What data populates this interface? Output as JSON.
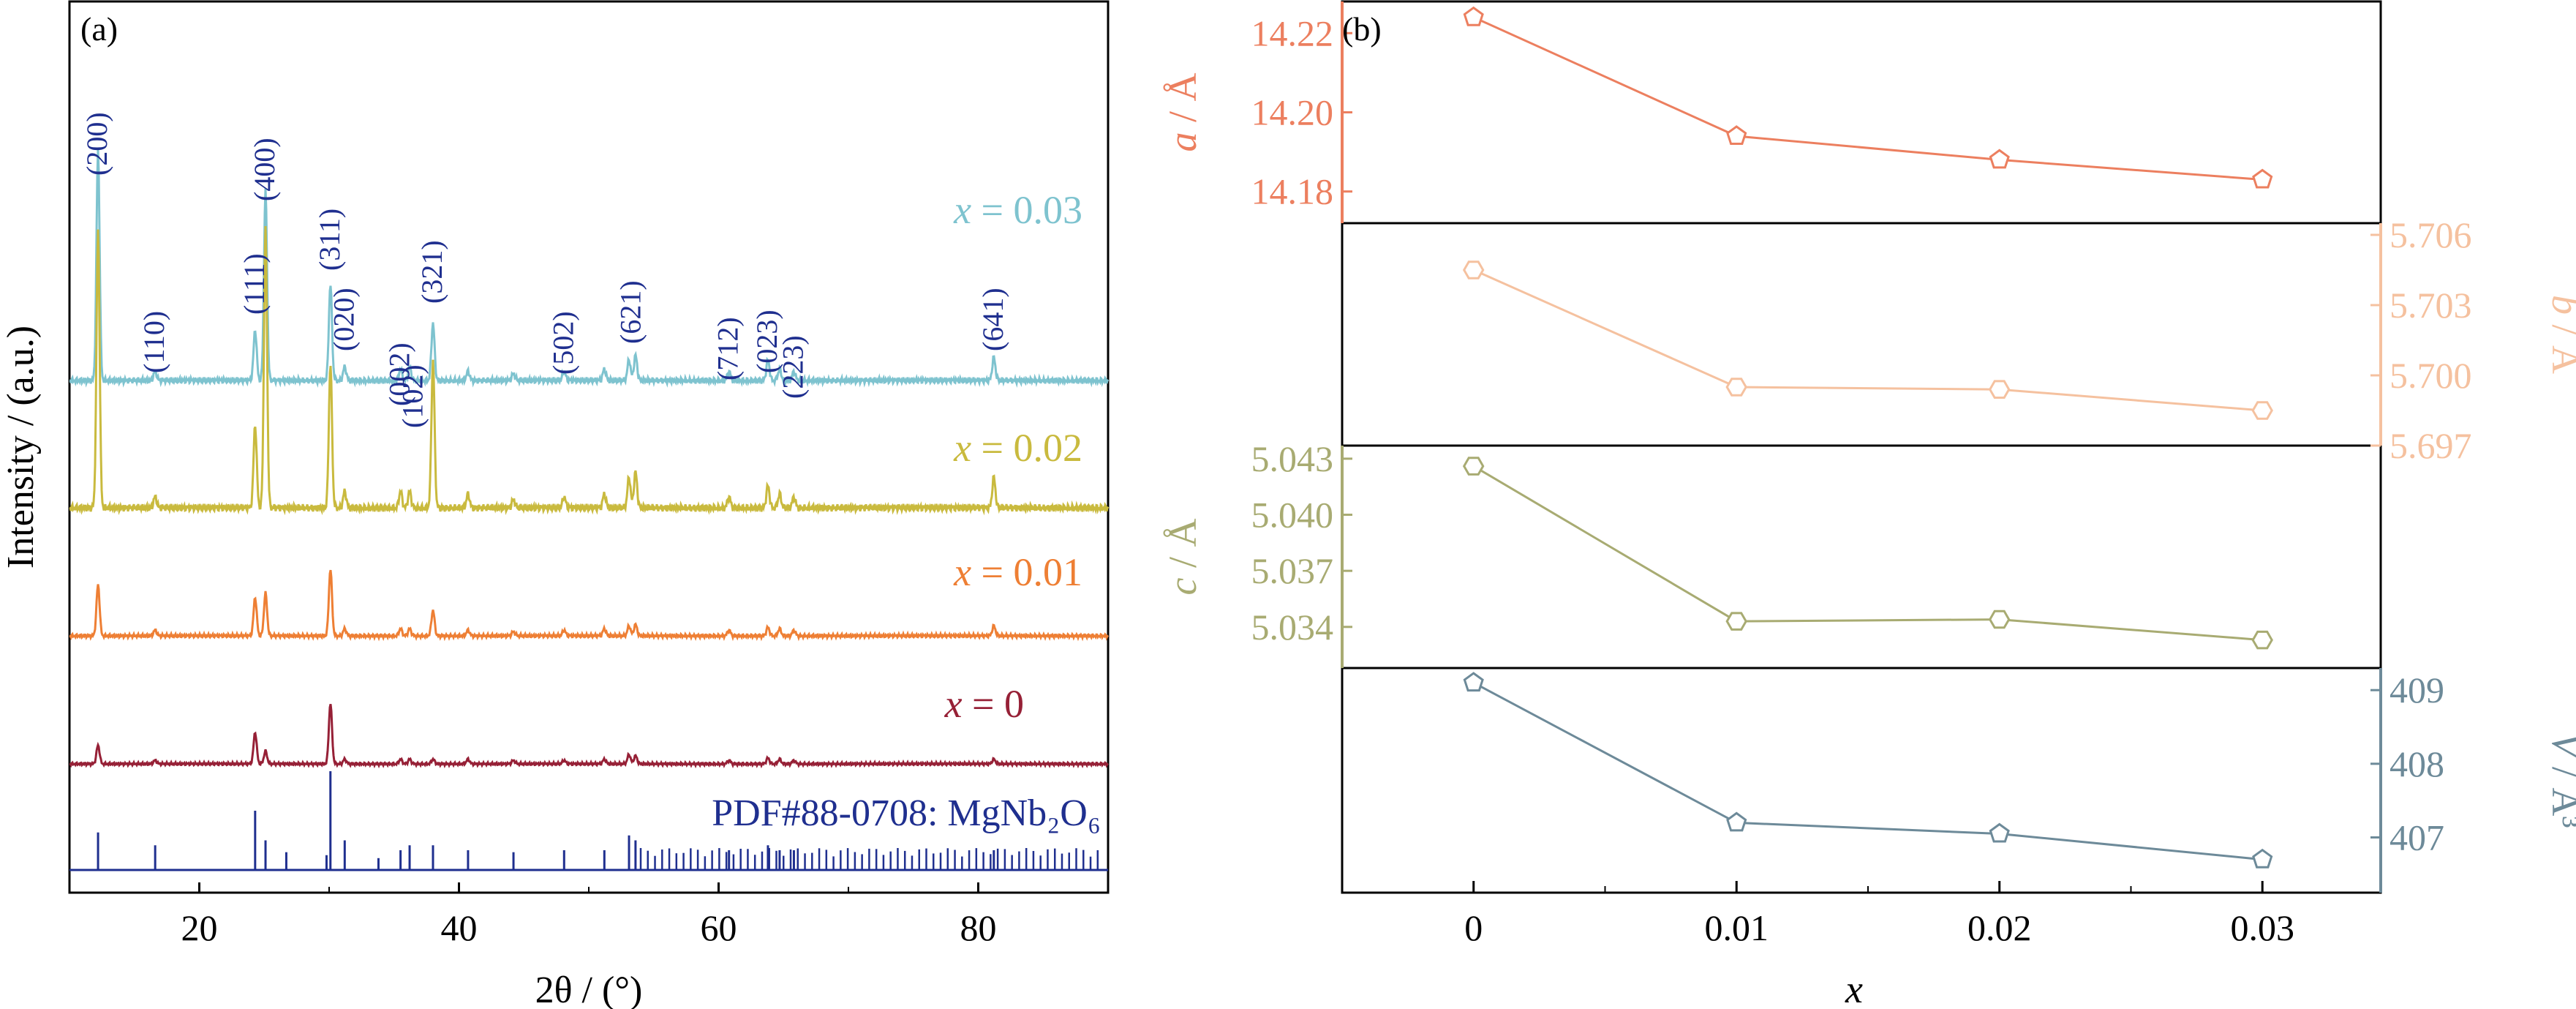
{
  "panels": {
    "a_label": "(a)",
    "b_label": "(b)"
  },
  "chart_data": [
    {
      "type": "line",
      "panel": "(a)",
      "xlabel": "2θ / (°)",
      "ylabel": "Intensity / (a.u.)",
      "xlim": [
        10,
        90
      ],
      "x_ticks": [
        20,
        40,
        60,
        80
      ],
      "series": [
        {
          "name": "x = 0.03",
          "color": "#7ec3cf",
          "peaks": [
            {
              "x": 12.2,
              "h": 1.0
            },
            {
              "x": 16.6,
              "h": 0.04
            },
            {
              "x": 24.3,
              "h": 0.22
            },
            {
              "x": 25.1,
              "h": 0.82
            },
            {
              "x": 30.1,
              "h": 0.42
            },
            {
              "x": 31.2,
              "h": 0.06
            },
            {
              "x": 35.5,
              "h": 0.05
            },
            {
              "x": 36.2,
              "h": 0.06
            },
            {
              "x": 38.0,
              "h": 0.25
            },
            {
              "x": 40.7,
              "h": 0.04
            },
            {
              "x": 44.2,
              "h": 0.03
            },
            {
              "x": 48.1,
              "h": 0.04
            },
            {
              "x": 51.2,
              "h": 0.05
            },
            {
              "x": 53.1,
              "h": 0.09
            },
            {
              "x": 53.6,
              "h": 0.11
            },
            {
              "x": 60.8,
              "h": 0.04
            },
            {
              "x": 63.8,
              "h": 0.09
            },
            {
              "x": 64.7,
              "h": 0.05
            },
            {
              "x": 65.8,
              "h": 0.04
            },
            {
              "x": 81.2,
              "h": 0.1
            }
          ]
        },
        {
          "name": "x = 0.02",
          "color": "#c9ba3e",
          "peaks": [
            {
              "x": 12.2,
              "h": 1.0
            },
            {
              "x": 16.6,
              "h": 0.04
            },
            {
              "x": 24.3,
              "h": 0.3
            },
            {
              "x": 25.1,
              "h": 1.0
            },
            {
              "x": 30.1,
              "h": 0.52
            },
            {
              "x": 31.2,
              "h": 0.06
            },
            {
              "x": 35.5,
              "h": 0.06
            },
            {
              "x": 36.2,
              "h": 0.06
            },
            {
              "x": 38.0,
              "h": 0.53
            },
            {
              "x": 40.7,
              "h": 0.05
            },
            {
              "x": 44.2,
              "h": 0.03
            },
            {
              "x": 48.1,
              "h": 0.04
            },
            {
              "x": 51.2,
              "h": 0.05
            },
            {
              "x": 53.1,
              "h": 0.11
            },
            {
              "x": 53.6,
              "h": 0.13
            },
            {
              "x": 60.8,
              "h": 0.04
            },
            {
              "x": 63.8,
              "h": 0.08
            },
            {
              "x": 64.7,
              "h": 0.05
            },
            {
              "x": 65.8,
              "h": 0.04
            },
            {
              "x": 81.2,
              "h": 0.11
            }
          ]
        },
        {
          "name": "x = 0.01",
          "color": "#ee7f34",
          "peaks": [
            {
              "x": 12.2,
              "h": 0.36
            },
            {
              "x": 16.6,
              "h": 0.04
            },
            {
              "x": 24.3,
              "h": 0.27
            },
            {
              "x": 25.1,
              "h": 0.3
            },
            {
              "x": 30.1,
              "h": 0.47
            },
            {
              "x": 31.2,
              "h": 0.05
            },
            {
              "x": 35.5,
              "h": 0.05
            },
            {
              "x": 36.2,
              "h": 0.05
            },
            {
              "x": 38.0,
              "h": 0.18
            },
            {
              "x": 40.7,
              "h": 0.04
            },
            {
              "x": 44.2,
              "h": 0.03
            },
            {
              "x": 48.1,
              "h": 0.04
            },
            {
              "x": 51.2,
              "h": 0.05
            },
            {
              "x": 53.1,
              "h": 0.07
            },
            {
              "x": 53.6,
              "h": 0.08
            },
            {
              "x": 60.8,
              "h": 0.04
            },
            {
              "x": 63.8,
              "h": 0.06
            },
            {
              "x": 64.7,
              "h": 0.05
            },
            {
              "x": 65.8,
              "h": 0.04
            },
            {
              "x": 81.2,
              "h": 0.07
            }
          ]
        },
        {
          "name": "x = 0",
          "color": "#962036",
          "peaks": [
            {
              "x": 12.2,
              "h": 0.16
            },
            {
              "x": 16.6,
              "h": 0.03
            },
            {
              "x": 24.3,
              "h": 0.27
            },
            {
              "x": 25.1,
              "h": 0.11
            },
            {
              "x": 30.1,
              "h": 0.52
            },
            {
              "x": 31.2,
              "h": 0.04
            },
            {
              "x": 35.5,
              "h": 0.04
            },
            {
              "x": 36.2,
              "h": 0.04
            },
            {
              "x": 38.0,
              "h": 0.04
            },
            {
              "x": 40.7,
              "h": 0.04
            },
            {
              "x": 44.2,
              "h": 0.03
            },
            {
              "x": 48.1,
              "h": 0.03
            },
            {
              "x": 51.2,
              "h": 0.04
            },
            {
              "x": 53.1,
              "h": 0.08
            },
            {
              "x": 53.6,
              "h": 0.07
            },
            {
              "x": 60.8,
              "h": 0.03
            },
            {
              "x": 63.8,
              "h": 0.05
            },
            {
              "x": 64.7,
              "h": 0.04
            },
            {
              "x": 65.8,
              "h": 0.03
            },
            {
              "x": 81.2,
              "h": 0.04
            }
          ]
        }
      ],
      "reference": {
        "label": "PDF#88-0708: MgNb₂O₆",
        "color": "#1f2f8f",
        "sticks": [
          {
            "x": 12.2,
            "h": 0.38
          },
          {
            "x": 16.6,
            "h": 0.25
          },
          {
            "x": 24.3,
            "h": 0.6
          },
          {
            "x": 25.1,
            "h": 0.3
          },
          {
            "x": 26.7,
            "h": 0.18
          },
          {
            "x": 29.8,
            "h": 0.15
          },
          {
            "x": 30.1,
            "h": 1.0
          },
          {
            "x": 31.2,
            "h": 0.3
          },
          {
            "x": 33.8,
            "h": 0.12
          },
          {
            "x": 35.5,
            "h": 0.2
          },
          {
            "x": 36.2,
            "h": 0.25
          },
          {
            "x": 38.0,
            "h": 0.25
          },
          {
            "x": 40.7,
            "h": 0.2
          },
          {
            "x": 44.2,
            "h": 0.18
          },
          {
            "x": 48.1,
            "h": 0.2
          },
          {
            "x": 51.2,
            "h": 0.2
          },
          {
            "x": 53.1,
            "h": 0.35
          },
          {
            "x": 53.6,
            "h": 0.3
          },
          {
            "x": 60.8,
            "h": 0.2
          },
          {
            "x": 63.8,
            "h": 0.25
          },
          {
            "x": 64.7,
            "h": 0.2
          },
          {
            "x": 65.8,
            "h": 0.2
          },
          {
            "x": 81.2,
            "h": 0.2
          }
        ]
      },
      "annotations": [
        {
          "text": "(200)",
          "x": 12.2
        },
        {
          "text": "(110)",
          "x": 16.6
        },
        {
          "text": "(111)",
          "x": 24.3
        },
        {
          "text": "(400)",
          "x": 25.1
        },
        {
          "text": "(311)",
          "x": 30.1
        },
        {
          "text": "(020)",
          "x": 31.2
        },
        {
          "text": "(002)",
          "x": 35.5
        },
        {
          "text": "(102)",
          "x": 36.5
        },
        {
          "text": "(321)",
          "x": 38.0
        },
        {
          "text": "(502)",
          "x": 48.1
        },
        {
          "text": "(621)",
          "x": 53.3
        },
        {
          "text": "(712)",
          "x": 60.8
        },
        {
          "text": "(023)",
          "x": 63.8
        },
        {
          "text": "(223)",
          "x": 65.8
        },
        {
          "text": "(641)",
          "x": 81.2
        }
      ]
    },
    {
      "type": "line",
      "panel": "(b)",
      "xlabel": "x",
      "x": [
        0,
        0.01,
        0.02,
        0.03
      ],
      "x_tick_labels": [
        "0",
        "0.01",
        "0.02",
        "0.03"
      ],
      "xlim": [
        -0.005,
        0.0345
      ],
      "series": [
        {
          "name": "a / Å",
          "color": "#ec7f5f",
          "marker": "pentagon",
          "values": [
            14.224,
            14.194,
            14.188,
            14.183
          ],
          "ylim": [
            14.172,
            14.228
          ],
          "ticks": [
            "14.18",
            "14.20",
            "14.22"
          ],
          "tick_values": [
            14.18,
            14.2,
            14.22
          ],
          "axis_side": "left"
        },
        {
          "name": "b / Å",
          "color": "#f5c19f",
          "marker": "hexagon",
          "values": [
            5.7045,
            5.6995,
            5.6994,
            5.6985
          ],
          "ylim": [
            5.697,
            5.7065
          ],
          "ticks": [
            "5.697",
            "5.700",
            "5.703",
            "5.706"
          ],
          "tick_values": [
            5.697,
            5.7,
            5.703,
            5.706
          ],
          "axis_side": "right"
        },
        {
          "name": "c / Å",
          "color": "#a8ab72",
          "marker": "hexagon",
          "values": [
            5.0426,
            5.0343,
            5.0344,
            5.0333
          ],
          "ylim": [
            5.0318,
            5.0437
          ],
          "ticks": [
            "5.034",
            "5.037",
            "5.040",
            "5.043"
          ],
          "tick_values": [
            5.034,
            5.037,
            5.04,
            5.043
          ],
          "axis_side": "left"
        },
        {
          "name": "V / Å³",
          "color": "#6d8a99",
          "marker": "pentagon",
          "values": [
            409.1,
            407.2,
            407.05,
            406.7
          ],
          "ylim": [
            406.25,
            409.3
          ],
          "ticks": [
            "407",
            "408",
            "409"
          ],
          "tick_values": [
            407,
            408,
            409
          ],
          "axis_side": "right"
        }
      ]
    }
  ]
}
